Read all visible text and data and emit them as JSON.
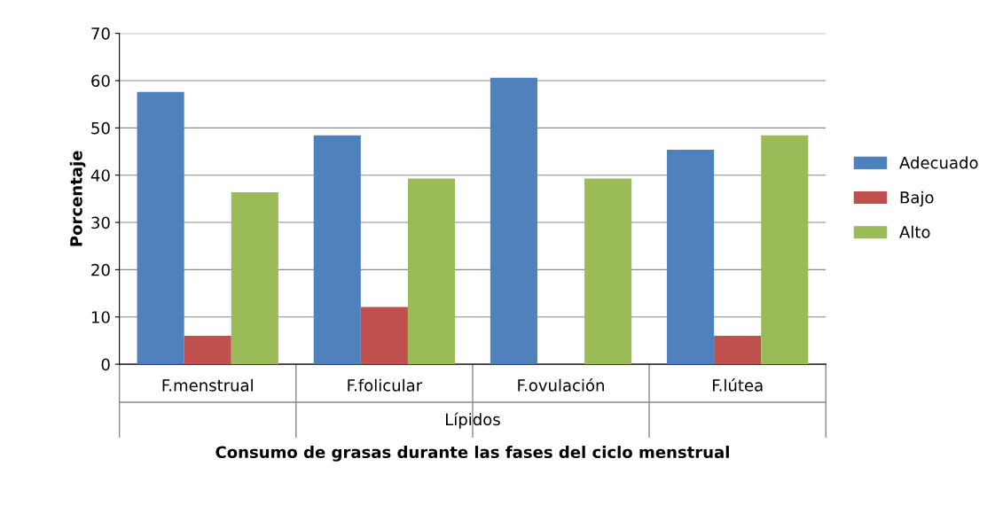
{
  "chart_data": {
    "type": "bar",
    "title": "Consumo de grasas durante las fases del ciclo menstrual",
    "xlabel": "Lípidos",
    "ylabel": "Porcentaje",
    "categories": [
      "F.menstrual",
      "F.folicular",
      "F.ovulación",
      "F.lútea"
    ],
    "series": [
      {
        "name": "Adecuado",
        "color": "#4f81bd",
        "values": [
          57.6,
          48.4,
          60.6,
          45.4
        ]
      },
      {
        "name": "Bajo",
        "color": "#c0504d",
        "values": [
          6.0,
          12.1,
          0,
          6.0
        ]
      },
      {
        "name": "Alto",
        "color": "#9bbb59",
        "values": [
          36.4,
          39.3,
          39.3,
          48.4
        ]
      }
    ],
    "ylim": [
      0,
      70
    ],
    "yticks": [
      0,
      10,
      20,
      30,
      40,
      50,
      60,
      70
    ],
    "grid": "y",
    "legend": "right"
  }
}
